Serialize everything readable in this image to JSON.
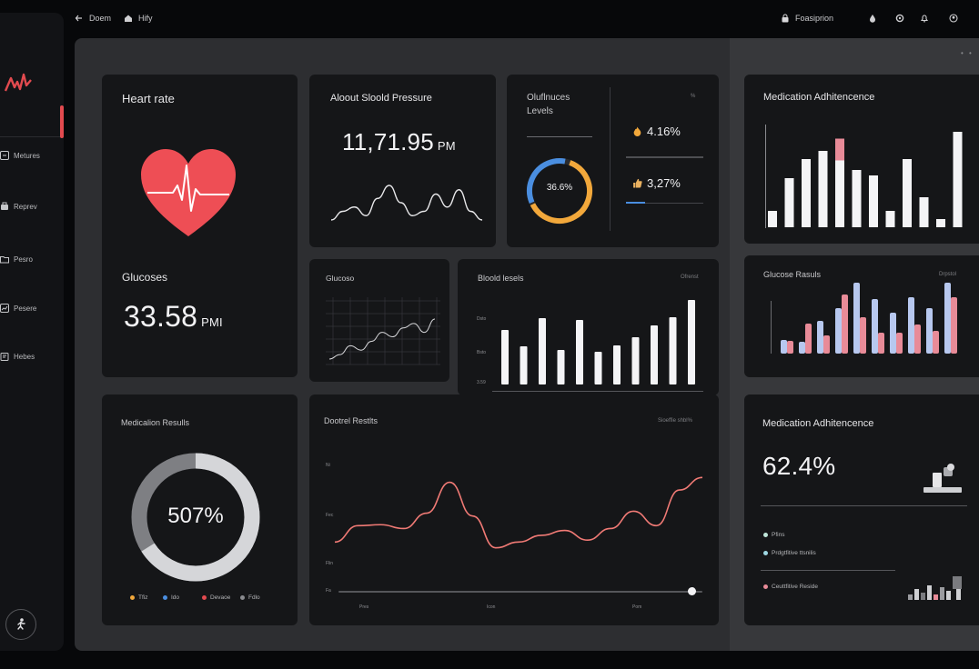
{
  "topbar": {
    "back_label": "Doem",
    "home_label": "Hify",
    "right_label": "Foasiprion"
  },
  "sidebar": {
    "logo": "Ar",
    "items": [
      {
        "label": "Metures",
        "icon": "grid-icon"
      },
      {
        "label": "Reprev",
        "icon": "bag-icon"
      },
      {
        "label": "Pesro",
        "icon": "folder-icon"
      },
      {
        "label": "Pesere",
        "icon": "chart-icon"
      },
      {
        "label": "Hebes",
        "icon": "clipboard-icon"
      }
    ]
  },
  "colors": {
    "accent_red": "#e24a4f",
    "heart_red": "#ee4e55",
    "ring_orange": "#f2a83b",
    "ring_blue": "#4a8ee0",
    "bar_pink": "#e88b98",
    "bar_blue": "#b7c8ef",
    "line_red": "#f07a75"
  },
  "heart_rate": {
    "title": "Heart rate"
  },
  "glucose": {
    "title": "Glucoses",
    "value": "33.58",
    "unit": "PMI"
  },
  "blood_pressure": {
    "title": "Aloout Sloold Pressure",
    "value": "11,71.95",
    "unit": "PM",
    "chart_data": {
      "type": "line",
      "values": [
        2,
        4,
        5,
        3,
        7,
        10,
        6,
        3,
        4,
        8,
        5,
        9,
        4,
        2
      ]
    }
  },
  "glucose_levels": {
    "title_line1": "Oluflnuces",
    "title_line2": "Levels",
    "corner": "%",
    "ring_value": "36.6%",
    "ring_fraction": 0.62,
    "stat1": "4.16%",
    "stat2": "3,27%",
    "stat1_progress": 1.0,
    "stat2_progress": 0.25
  },
  "medication_adherence_top": {
    "title": "Medication Adhitencence",
    "chart_data": {
      "type": "bar",
      "values": [
        0.12,
        0.36,
        0.5,
        0.56,
        0.65,
        0.42,
        0.38,
        0.12,
        0.5,
        0.22,
        0.06,
        0.7
      ],
      "highlight": [
        0,
        0,
        0,
        0,
        1,
        0,
        0,
        0,
        0,
        0,
        0,
        0
      ]
    }
  },
  "glucose_small": {
    "title": "Glucoso",
    "chart_data": {
      "type": "line",
      "values": [
        1,
        2,
        4,
        3,
        5,
        7,
        6,
        8,
        9,
        7,
        10
      ]
    }
  },
  "blood_levels": {
    "title": "Bloold lesels",
    "tag": "Ofrenst",
    "yticks": [
      "Dsto",
      "Bsto",
      "3.59"
    ],
    "chart_data": {
      "type": "bar",
      "values": [
        0.6,
        0.42,
        0.73,
        0.38,
        0.71,
        0.36,
        0.43,
        0.52,
        0.65,
        0.74,
        0.93
      ]
    }
  },
  "glucose_results": {
    "title": "Glucose Rasuls",
    "tag": "Drpstol",
    "chart_data": {
      "type": "bar",
      "series": [
        {
          "name": "",
          "values": [
            0.15,
            0.13,
            0.36,
            0.5,
            0.78,
            0.6,
            0.45,
            0.62,
            0.5,
            0.78
          ]
        },
        {
          "name": "",
          "values": [
            0.14,
            0.33,
            0.2,
            0.65,
            0.4,
            0.23,
            0.23,
            0.32,
            0.25,
            0.62
          ]
        }
      ]
    }
  },
  "medication_results": {
    "title": "Medicalion Resulls",
    "ring_value": "507%",
    "ring_fraction": 0.66,
    "legend": [
      "Tfiz",
      "Ido",
      "Devaoe",
      "Fdlo"
    ]
  },
  "control_results": {
    "title": "Dootrel Restlts",
    "tag": "Sioeffie shbl%",
    "yticks": [
      "Ni",
      "Fec",
      "Flin",
      "Fa"
    ],
    "xticks": [
      "Pres",
      "Icon",
      "Pom"
    ],
    "chart_data": {
      "type": "line",
      "values": [
        0.28,
        0.45,
        0.46,
        0.42,
        0.58,
        0.9,
        0.55,
        0.22,
        0.28,
        0.35,
        0.4,
        0.3,
        0.42,
        0.6,
        0.45,
        0.82,
        0.95
      ],
      "slider_position": 0.97
    }
  },
  "medication_adherence_bottom": {
    "title": "Medication Adhitencence",
    "value": "62.4%",
    "legend": [
      "Pfins",
      "Prdgtfitive ttsnilis",
      "Ceuttfitive Reside"
    ]
  }
}
